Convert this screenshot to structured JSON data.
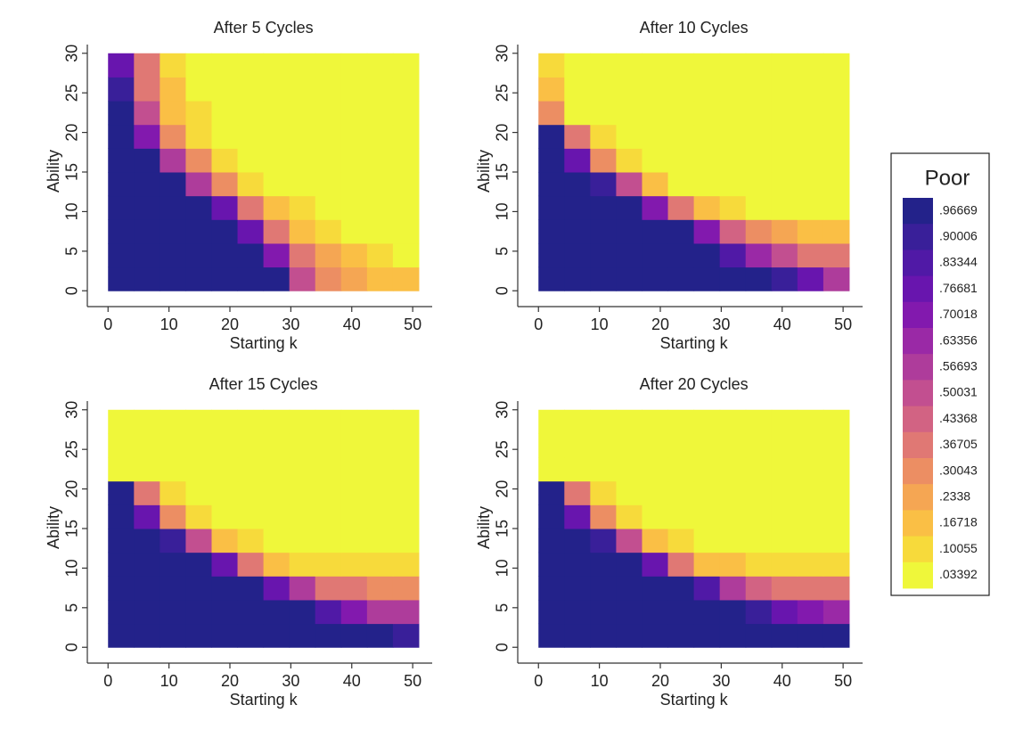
{
  "chart_data": [
    {
      "type": "heatmap",
      "title": "After 5 Cycles",
      "xlabel": "Starting k",
      "ylabel": "Ability",
      "xlim": [
        -3.4,
        53.2
      ],
      "ylim": [
        -2,
        31.1
      ],
      "xticks": [
        0,
        10,
        20,
        30,
        40,
        50
      ],
      "yticks": [
        0,
        5,
        10,
        15,
        20,
        25,
        30
      ],
      "xbins": [
        0,
        4.25,
        8.5,
        12.75,
        17,
        21.25,
        25.5,
        29.75,
        34,
        38.25,
        42.5,
        46.75,
        51
      ],
      "ybins": [
        0,
        3,
        6,
        9,
        12,
        15,
        18,
        21,
        24,
        27,
        30
      ],
      "z": [
        [
          0.97,
          0.97,
          0.97,
          0.97,
          0.97,
          0.97,
          0.97,
          0.5,
          0.3,
          0.25,
          0.2,
          0.15
        ],
        [
          0.97,
          0.97,
          0.97,
          0.97,
          0.97,
          0.97,
          0.7,
          0.4,
          0.25,
          0.15,
          0.07,
          0.03
        ],
        [
          0.97,
          0.97,
          0.97,
          0.97,
          0.97,
          0.8,
          0.4,
          0.2,
          0.1,
          0.03,
          0.03,
          0.03
        ],
        [
          0.97,
          0.97,
          0.97,
          0.97,
          0.8,
          0.4,
          0.2,
          0.07,
          0.03,
          0.03,
          0.03,
          0.03
        ],
        [
          0.97,
          0.97,
          0.97,
          0.6,
          0.3,
          0.1,
          0.03,
          0.03,
          0.03,
          0.03,
          0.03,
          0.03
        ],
        [
          0.97,
          0.97,
          0.6,
          0.3,
          0.1,
          0.03,
          0.03,
          0.03,
          0.03,
          0.03,
          0.03,
          0.03
        ],
        [
          0.97,
          0.7,
          0.3,
          0.1,
          0.03,
          0.03,
          0.03,
          0.03,
          0.03,
          0.03,
          0.03,
          0.03
        ],
        [
          0.97,
          0.5,
          0.2,
          0.07,
          0.03,
          0.03,
          0.03,
          0.03,
          0.03,
          0.03,
          0.03,
          0.03
        ],
        [
          0.9,
          0.4,
          0.15,
          0.05,
          0.03,
          0.03,
          0.03,
          0.03,
          0.03,
          0.03,
          0.03,
          0.03
        ],
        [
          0.8,
          0.35,
          0.1,
          0.03,
          0.03,
          0.03,
          0.03,
          0.03,
          0.03,
          0.03,
          0.03,
          0.03
        ]
      ]
    },
    {
      "type": "heatmap",
      "title": "After 10 Cycles",
      "xlabel": "Starting k",
      "ylabel": "Ability",
      "xlim": [
        -3.4,
        53.2
      ],
      "ylim": [
        -2,
        31.1
      ],
      "xticks": [
        0,
        10,
        20,
        30,
        40,
        50
      ],
      "yticks": [
        0,
        5,
        10,
        15,
        20,
        25,
        30
      ],
      "xbins": [
        0,
        4.25,
        8.5,
        12.75,
        17,
        21.25,
        25.5,
        29.75,
        34,
        38.25,
        42.5,
        46.75,
        51
      ],
      "ybins": [
        0,
        3,
        6,
        9,
        12,
        15,
        18,
        21,
        24,
        27,
        30
      ],
      "z": [
        [
          0.97,
          0.97,
          0.97,
          0.97,
          0.97,
          0.97,
          0.97,
          0.97,
          0.97,
          0.9,
          0.75,
          0.6
        ],
        [
          0.97,
          0.97,
          0.97,
          0.97,
          0.97,
          0.97,
          0.97,
          0.85,
          0.65,
          0.5,
          0.4,
          0.35
        ],
        [
          0.97,
          0.97,
          0.97,
          0.97,
          0.97,
          0.95,
          0.7,
          0.45,
          0.3,
          0.25,
          0.2,
          0.2
        ],
        [
          0.97,
          0.97,
          0.97,
          0.97,
          0.7,
          0.35,
          0.15,
          0.07,
          0.03,
          0.03,
          0.03,
          0.03
        ],
        [
          0.97,
          0.97,
          0.9,
          0.5,
          0.15,
          0.05,
          0.03,
          0.03,
          0.03,
          0.03,
          0.03,
          0.03
        ],
        [
          0.97,
          0.8,
          0.3,
          0.07,
          0.03,
          0.03,
          0.03,
          0.03,
          0.03,
          0.03,
          0.03,
          0.03
        ],
        [
          0.95,
          0.4,
          0.1,
          0.03,
          0.03,
          0.03,
          0.03,
          0.03,
          0.03,
          0.03,
          0.03,
          0.03
        ],
        [
          0.3,
          0.05,
          0.03,
          0.03,
          0.03,
          0.03,
          0.03,
          0.03,
          0.03,
          0.03,
          0.03,
          0.03
        ],
        [
          0.15,
          0.03,
          0.03,
          0.03,
          0.03,
          0.03,
          0.03,
          0.03,
          0.03,
          0.03,
          0.03,
          0.03
        ],
        [
          0.07,
          0.03,
          0.03,
          0.03,
          0.03,
          0.03,
          0.03,
          0.03,
          0.03,
          0.03,
          0.03,
          0.03
        ]
      ]
    },
    {
      "type": "heatmap",
      "title": "After 15 Cycles",
      "xlabel": "Starting k",
      "ylabel": "Ability",
      "xlim": [
        -3.4,
        53.2
      ],
      "ylim": [
        -2,
        31.1
      ],
      "xticks": [
        0,
        10,
        20,
        30,
        40,
        50
      ],
      "yticks": [
        0,
        5,
        10,
        15,
        20,
        25,
        30
      ],
      "xbins": [
        0,
        4.25,
        8.5,
        12.75,
        17,
        21.25,
        25.5,
        29.75,
        34,
        38.25,
        42.5,
        46.75,
        51
      ],
      "ybins": [
        0,
        3,
        6,
        9,
        12,
        15,
        18,
        21,
        24,
        27,
        30
      ],
      "z": [
        [
          0.97,
          0.97,
          0.97,
          0.97,
          0.97,
          0.97,
          0.97,
          0.97,
          0.97,
          0.97,
          0.97,
          0.9
        ],
        [
          0.97,
          0.97,
          0.97,
          0.97,
          0.97,
          0.97,
          0.97,
          0.95,
          0.85,
          0.7,
          0.6,
          0.55
        ],
        [
          0.97,
          0.97,
          0.97,
          0.97,
          0.97,
          0.97,
          0.8,
          0.55,
          0.4,
          0.35,
          0.3,
          0.3
        ],
        [
          0.97,
          0.97,
          0.97,
          0.97,
          0.75,
          0.4,
          0.2,
          0.12,
          0.1,
          0.08,
          0.08,
          0.08
        ],
        [
          0.97,
          0.97,
          0.9,
          0.5,
          0.15,
          0.07,
          0.03,
          0.03,
          0.03,
          0.03,
          0.03,
          0.03
        ],
        [
          0.97,
          0.8,
          0.3,
          0.07,
          0.03,
          0.03,
          0.03,
          0.03,
          0.03,
          0.03,
          0.03,
          0.03
        ],
        [
          0.95,
          0.35,
          0.07,
          0.03,
          0.03,
          0.03,
          0.03,
          0.03,
          0.03,
          0.03,
          0.03,
          0.03
        ],
        [
          0.03,
          0.03,
          0.03,
          0.03,
          0.03,
          0.03,
          0.03,
          0.03,
          0.03,
          0.03,
          0.03,
          0.03
        ],
        [
          0.03,
          0.03,
          0.03,
          0.03,
          0.03,
          0.03,
          0.03,
          0.03,
          0.03,
          0.03,
          0.03,
          0.03
        ],
        [
          0.03,
          0.03,
          0.03,
          0.03,
          0.03,
          0.03,
          0.03,
          0.03,
          0.03,
          0.03,
          0.03,
          0.03
        ]
      ]
    },
    {
      "type": "heatmap",
      "title": "After 20 Cycles",
      "xlabel": "Starting k",
      "ylabel": "Ability",
      "xlim": [
        -3.4,
        53.2
      ],
      "ylim": [
        -2,
        31.1
      ],
      "xticks": [
        0,
        10,
        20,
        30,
        40,
        50
      ],
      "yticks": [
        0,
        5,
        10,
        15,
        20,
        25,
        30
      ],
      "xbins": [
        0,
        4.25,
        8.5,
        12.75,
        17,
        21.25,
        25.5,
        29.75,
        34,
        38.25,
        42.5,
        46.75,
        51
      ],
      "ybins": [
        0,
        3,
        6,
        9,
        12,
        15,
        18,
        21,
        24,
        27,
        30
      ],
      "z": [
        [
          0.97,
          0.97,
          0.97,
          0.97,
          0.97,
          0.97,
          0.97,
          0.97,
          0.97,
          0.97,
          0.97,
          0.97
        ],
        [
          0.97,
          0.97,
          0.97,
          0.97,
          0.97,
          0.97,
          0.97,
          0.97,
          0.9,
          0.8,
          0.7,
          0.65
        ],
        [
          0.97,
          0.97,
          0.97,
          0.97,
          0.97,
          0.97,
          0.85,
          0.6,
          0.45,
          0.4,
          0.35,
          0.35
        ],
        [
          0.97,
          0.97,
          0.97,
          0.97,
          0.75,
          0.4,
          0.2,
          0.15,
          0.12,
          0.1,
          0.1,
          0.1
        ],
        [
          0.97,
          0.97,
          0.9,
          0.5,
          0.15,
          0.07,
          0.03,
          0.03,
          0.03,
          0.03,
          0.03,
          0.03
        ],
        [
          0.97,
          0.8,
          0.3,
          0.07,
          0.03,
          0.03,
          0.03,
          0.03,
          0.03,
          0.03,
          0.03,
          0.03
        ],
        [
          0.95,
          0.35,
          0.07,
          0.03,
          0.03,
          0.03,
          0.03,
          0.03,
          0.03,
          0.03,
          0.03,
          0.03
        ],
        [
          0.03,
          0.03,
          0.03,
          0.03,
          0.03,
          0.03,
          0.03,
          0.03,
          0.03,
          0.03,
          0.03,
          0.03
        ],
        [
          0.03,
          0.03,
          0.03,
          0.03,
          0.03,
          0.03,
          0.03,
          0.03,
          0.03,
          0.03,
          0.03,
          0.03
        ],
        [
          0.03,
          0.03,
          0.03,
          0.03,
          0.03,
          0.03,
          0.03,
          0.03,
          0.03,
          0.03,
          0.03,
          0.03
        ]
      ]
    }
  ],
  "legend": {
    "title": "Poor",
    "levels": [
      {
        "value": 0.96669,
        "label": ".96669"
      },
      {
        "value": 0.90006,
        "label": ".90006"
      },
      {
        "value": 0.83344,
        "label": ".83344"
      },
      {
        "value": 0.76681,
        "label": ".76681"
      },
      {
        "value": 0.70018,
        "label": ".70018"
      },
      {
        "value": 0.63356,
        "label": ".63356"
      },
      {
        "value": 0.56693,
        "label": ".56693"
      },
      {
        "value": 0.50031,
        "label": ".50031"
      },
      {
        "value": 0.43368,
        "label": ".43368"
      },
      {
        "value": 0.36705,
        "label": ".36705"
      },
      {
        "value": 0.30043,
        "label": ".30043"
      },
      {
        "value": 0.2338,
        "label": ".2338"
      },
      {
        "value": 0.16718,
        "label": ".16718"
      },
      {
        "value": 0.10055,
        "label": ".10055"
      },
      {
        "value": 0.03392,
        "label": ".03392"
      }
    ],
    "colors": [
      "#23228a",
      "#391f99",
      "#5019a6",
      "#6815ae",
      "#8219ae",
      "#9a29a6",
      "#ae3c9b",
      "#c24f90",
      "#d26383",
      "#e07874",
      "#ec8e63",
      "#f5a653",
      "#fabf45",
      "#f7da3b",
      "#eff73a"
    ]
  }
}
